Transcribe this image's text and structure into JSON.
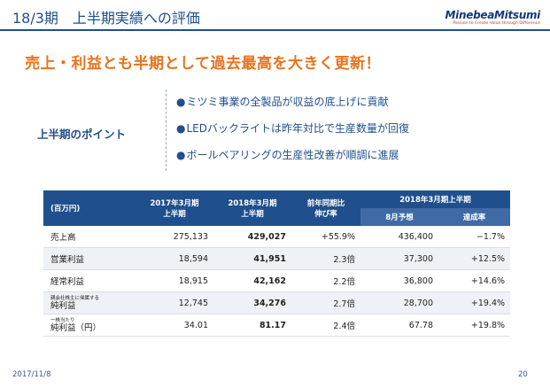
{
  "header": {
    "title": "18/3期　上半期実績への評価",
    "logo": "MinebeaMitsumi",
    "logo_tagline": "Passion to Create Value through Difference"
  },
  "headline": "売上・利益とも半期として過去最高を大きく更新！",
  "points": {
    "label": "上半期のポイント",
    "items": [
      "ミツミ事業の全製品が収益の底上げに貢献",
      "LEDバックライトは昨年対比で生産数量が回復",
      "ボールベアリングの生産性改善が順調に進展"
    ]
  },
  "table": {
    "unit": "(百万円)",
    "col1": [
      "2017年3月期",
      "上半期"
    ],
    "col2": [
      "2018年3月期",
      "上半期"
    ],
    "col3": [
      "前年同期比",
      "伸び率"
    ],
    "group": "2018年3月期上半期",
    "col4": "8月予想",
    "col5": "達成率",
    "rows": [
      {
        "label": "売上高",
        "v1": "275,133",
        "v2": "429,027",
        "v3": "+55.9%",
        "v4": "436,400",
        "v5": "−1.7%"
      },
      {
        "label": "営業利益",
        "v1": "18,594",
        "v2": "41,951",
        "v3": "2.3倍",
        "v4": "37,300",
        "v5": "+12.5%"
      },
      {
        "label": "経常利益",
        "v1": "18,915",
        "v2": "42,162",
        "v3": "2.2倍",
        "v4": "36,800",
        "v5": "+14.6%"
      },
      {
        "label_small": "親会社株主に帰属する",
        "label": "純利益",
        "v1": "12,745",
        "v2": "34,276",
        "v3": "2.7倍",
        "v4": "28,700",
        "v5": "+19.4%"
      },
      {
        "label_small": "一株当たり",
        "label": "純利益（円）",
        "v1": "34.01",
        "v2": "81.17",
        "v3": "2.4倍",
        "v4": "67.78",
        "v5": "+19.8%"
      }
    ]
  },
  "footer": {
    "date": "2017/11/8",
    "page": "20"
  }
}
